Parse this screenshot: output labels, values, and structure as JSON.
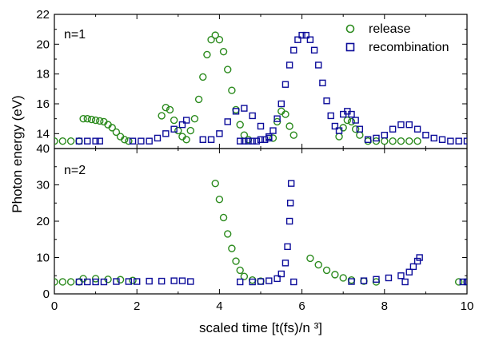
{
  "colors": {
    "release": "#2a8a1c",
    "recombination": "#0c0c9a"
  },
  "chart_data": [
    {
      "type": "scatter",
      "panel_label": "n=1",
      "xlim": [
        0,
        10
      ],
      "ylim": [
        13,
        22
      ],
      "yticks": [
        14,
        16,
        18,
        20,
        22
      ],
      "legend": {
        "placement": "top-right",
        "entries": [
          "release",
          "recombination"
        ]
      },
      "series": [
        {
          "name": "release",
          "marker": "circle",
          "points": [
            [
              -0.2,
              13.5
            ],
            [
              0.0,
              13.5
            ],
            [
              0.2,
              13.5
            ],
            [
              0.4,
              13.5
            ],
            [
              0.6,
              13.5
            ],
            [
              0.7,
              15.0
            ],
            [
              0.8,
              15.0
            ],
            [
              0.9,
              14.95
            ],
            [
              1.0,
              14.9
            ],
            [
              1.1,
              14.85
            ],
            [
              1.2,
              14.8
            ],
            [
              1.3,
              14.6
            ],
            [
              1.4,
              14.4
            ],
            [
              1.5,
              14.1
            ],
            [
              1.6,
              13.8
            ],
            [
              1.7,
              13.6
            ],
            [
              1.8,
              13.5
            ],
            [
              2.6,
              15.2
            ],
            [
              2.7,
              15.75
            ],
            [
              2.8,
              15.6
            ],
            [
              2.9,
              14.9
            ],
            [
              3.0,
              14.2
            ],
            [
              3.1,
              13.8
            ],
            [
              3.2,
              13.6
            ],
            [
              3.3,
              14.2
            ],
            [
              3.4,
              15.0
            ],
            [
              3.5,
              16.3
            ],
            [
              3.6,
              17.8
            ],
            [
              3.7,
              19.3
            ],
            [
              3.8,
              20.3
            ],
            [
              3.9,
              20.6
            ],
            [
              4.0,
              20.3
            ],
            [
              4.1,
              19.5
            ],
            [
              4.2,
              18.3
            ],
            [
              4.3,
              16.9
            ],
            [
              4.4,
              15.6
            ],
            [
              4.5,
              14.6
            ],
            [
              4.6,
              13.9
            ],
            [
              4.7,
              13.6
            ],
            [
              5.3,
              13.7
            ],
            [
              5.4,
              14.8
            ],
            [
              5.5,
              15.5
            ],
            [
              5.6,
              15.3
            ],
            [
              5.7,
              14.5
            ],
            [
              5.8,
              13.9
            ],
            [
              6.9,
              13.8
            ],
            [
              7.0,
              14.4
            ],
            [
              7.1,
              14.9
            ],
            [
              7.2,
              14.8
            ],
            [
              7.3,
              14.3
            ],
            [
              7.4,
              13.9
            ],
            [
              7.6,
              13.5
            ],
            [
              7.8,
              13.5
            ],
            [
              8.0,
              13.5
            ],
            [
              8.2,
              13.5
            ],
            [
              8.4,
              13.5
            ],
            [
              8.6,
              13.5
            ],
            [
              8.8,
              13.5
            ]
          ]
        },
        {
          "name": "recombination",
          "marker": "square",
          "points": [
            [
              0.6,
              13.5
            ],
            [
              0.8,
              13.5
            ],
            [
              1.0,
              13.5
            ],
            [
              1.1,
              13.5
            ],
            [
              1.9,
              13.5
            ],
            [
              2.1,
              13.5
            ],
            [
              2.3,
              13.5
            ],
            [
              2.5,
              13.7
            ],
            [
              2.7,
              14.0
            ],
            [
              2.9,
              14.3
            ],
            [
              3.1,
              14.6
            ],
            [
              3.2,
              14.9
            ],
            [
              3.6,
              13.6
            ],
            [
              3.8,
              13.6
            ],
            [
              4.0,
              14.0
            ],
            [
              4.2,
              14.8
            ],
            [
              4.4,
              15.5
            ],
            [
              4.6,
              15.7
            ],
            [
              4.8,
              15.2
            ],
            [
              5.0,
              14.5
            ],
            [
              5.2,
              13.8
            ],
            [
              4.5,
              13.5
            ],
            [
              4.6,
              13.5
            ],
            [
              4.7,
              13.5
            ],
            [
              4.8,
              13.5
            ],
            [
              4.9,
              13.5
            ],
            [
              5.0,
              13.6
            ],
            [
              5.1,
              13.6
            ],
            [
              5.2,
              13.7
            ],
            [
              5.3,
              14.2
            ],
            [
              5.4,
              15.0
            ],
            [
              5.5,
              16.0
            ],
            [
              5.6,
              17.3
            ],
            [
              5.7,
              18.6
            ],
            [
              5.8,
              19.6
            ],
            [
              5.9,
              20.3
            ],
            [
              6.0,
              20.6
            ],
            [
              6.1,
              20.6
            ],
            [
              6.2,
              20.3
            ],
            [
              6.3,
              19.6
            ],
            [
              6.4,
              18.6
            ],
            [
              6.5,
              17.4
            ],
            [
              6.6,
              16.2
            ],
            [
              6.7,
              15.2
            ],
            [
              6.8,
              14.5
            ],
            [
              6.9,
              14.2
            ],
            [
              7.0,
              15.3
            ],
            [
              7.1,
              15.5
            ],
            [
              7.2,
              15.3
            ],
            [
              7.3,
              14.9
            ],
            [
              7.4,
              14.3
            ],
            [
              7.6,
              13.6
            ],
            [
              7.8,
              13.7
            ],
            [
              8.0,
              13.9
            ],
            [
              8.2,
              14.3
            ],
            [
              8.4,
              14.6
            ],
            [
              8.6,
              14.6
            ],
            [
              8.8,
              14.3
            ],
            [
              9.0,
              13.9
            ],
            [
              9.2,
              13.7
            ],
            [
              9.4,
              13.6
            ],
            [
              9.6,
              13.5
            ],
            [
              9.8,
              13.5
            ],
            [
              10.0,
              13.5
            ]
          ]
        }
      ]
    },
    {
      "type": "scatter",
      "panel_label": "n=2",
      "xlabel": "scaled time [t(fs)/n ³]",
      "xlim": [
        0,
        10
      ],
      "ylim": [
        0,
        40
      ],
      "xticks": [
        0,
        2,
        4,
        6,
        8,
        10
      ],
      "yticks": [
        0,
        10,
        20,
        30,
        40
      ],
      "series": [
        {
          "name": "release",
          "marker": "circle",
          "points": [
            [
              -0.2,
              3.3
            ],
            [
              0.0,
              3.3
            ],
            [
              0.2,
              3.3
            ],
            [
              0.4,
              3.3
            ],
            [
              0.6,
              3.3
            ],
            [
              0.7,
              4.2
            ],
            [
              1.0,
              4.2
            ],
            [
              1.3,
              4.0
            ],
            [
              1.6,
              3.9
            ],
            [
              1.9,
              3.7
            ],
            [
              3.9,
              30.4
            ],
            [
              4.0,
              26.0
            ],
            [
              4.1,
              21.0
            ],
            [
              4.2,
              16.5
            ],
            [
              4.3,
              12.5
            ],
            [
              4.4,
              9.0
            ],
            [
              4.5,
              6.5
            ],
            [
              4.6,
              4.8
            ],
            [
              4.8,
              3.8
            ],
            [
              5.0,
              3.5
            ],
            [
              6.2,
              9.8
            ],
            [
              6.4,
              8.0
            ],
            [
              6.6,
              6.5
            ],
            [
              6.8,
              5.3
            ],
            [
              7.0,
              4.4
            ],
            [
              7.2,
              3.8
            ],
            [
              7.5,
              3.5
            ],
            [
              7.8,
              3.3
            ],
            [
              9.8,
              3.3
            ],
            [
              10.0,
              3.3
            ]
          ]
        },
        {
          "name": "recombination",
          "marker": "square",
          "points": [
            [
              0.6,
              3.3
            ],
            [
              0.8,
              3.3
            ],
            [
              1.0,
              3.3
            ],
            [
              1.2,
              3.3
            ],
            [
              1.5,
              3.4
            ],
            [
              1.8,
              3.4
            ],
            [
              2.0,
              3.4
            ],
            [
              2.3,
              3.5
            ],
            [
              2.6,
              3.5
            ],
            [
              2.9,
              3.6
            ],
            [
              3.1,
              3.6
            ],
            [
              3.3,
              3.4
            ],
            [
              4.5,
              3.3
            ],
            [
              4.8,
              3.3
            ],
            [
              5.0,
              3.4
            ],
            [
              5.2,
              3.6
            ],
            [
              5.4,
              4.2
            ],
            [
              5.5,
              5.5
            ],
            [
              5.6,
              8.5
            ],
            [
              5.65,
              13.0
            ],
            [
              5.7,
              20.0
            ],
            [
              5.72,
              25.0
            ],
            [
              5.74,
              30.4
            ],
            [
              5.8,
              3.3
            ],
            [
              7.2,
              3.4
            ],
            [
              7.5,
              3.6
            ],
            [
              7.8,
              4.0
            ],
            [
              8.1,
              4.4
            ],
            [
              8.4,
              5.0
            ],
            [
              8.6,
              6.0
            ],
            [
              8.7,
              7.5
            ],
            [
              8.8,
              9.0
            ],
            [
              8.85,
              10.0
            ],
            [
              8.5,
              3.3
            ],
            [
              9.9,
              3.3
            ],
            [
              10.0,
              3.3
            ]
          ]
        }
      ]
    }
  ],
  "ylabel": "Photon energy (eV)"
}
